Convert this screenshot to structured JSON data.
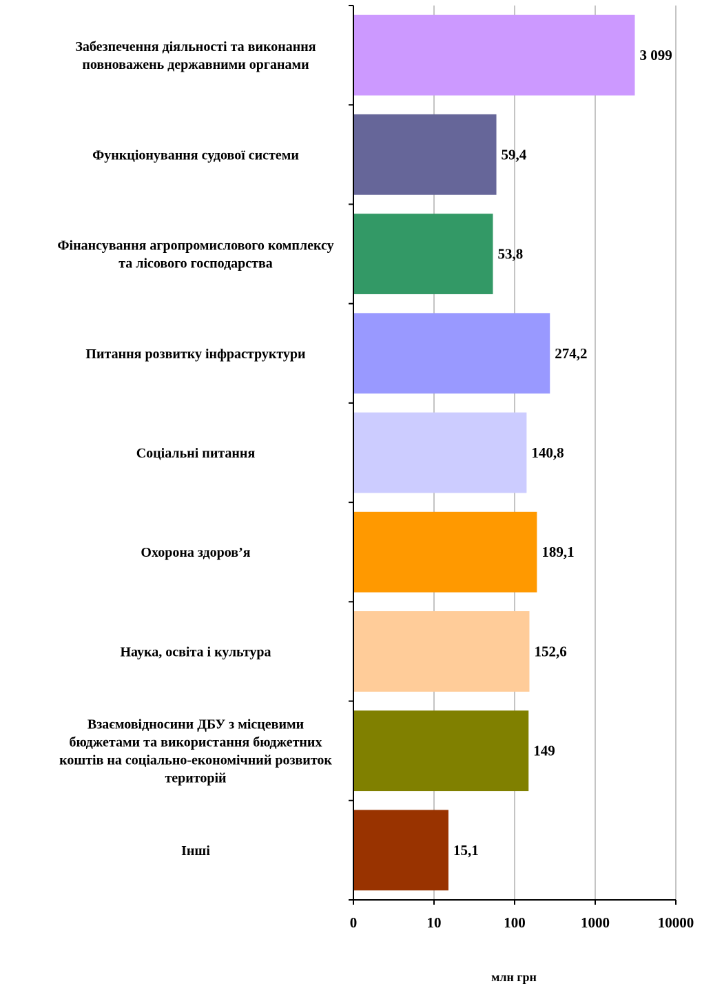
{
  "chart_data": {
    "type": "bar",
    "orientation": "horizontal",
    "x_scale": "log",
    "xlim": [
      1,
      10000
    ],
    "grid": true,
    "xlabel": "млн грн",
    "x_ticks": [
      "0",
      "10",
      "100",
      "1000",
      "10000"
    ],
    "categories": [
      [
        "Забезпечення діяльності та виконання",
        "повноважень державними органами"
      ],
      [
        "Функціонування судової системи"
      ],
      [
        "Фінансування агропромислового комплексу",
        "та лісового господарства"
      ],
      [
        "Питання розвитку інфраструктури"
      ],
      [
        "Соціальні питання"
      ],
      [
        "Охорона здоров’я"
      ],
      [
        "Наука, освіта і культура"
      ],
      [
        "Взаємовідносини ДБУ з місцевими",
        "бюджетами та використання бюджетних",
        "коштів на соціально-економічний розвиток",
        "територій"
      ],
      [
        "Інші"
      ]
    ],
    "values": [
      3099,
      59.4,
      53.8,
      274.2,
      140.8,
      189.1,
      152.6,
      149,
      15.1
    ],
    "value_labels": [
      "3 099",
      "59,4",
      "53,8",
      "274,2",
      "140,8",
      "189,1",
      "152,6",
      "149",
      "15,1"
    ],
    "colors": [
      "#CC99FF",
      "#666699",
      "#339966",
      "#9999FF",
      "#CCCCFF",
      "#FF9900",
      "#FFCC99",
      "#808000",
      "#993300"
    ]
  }
}
